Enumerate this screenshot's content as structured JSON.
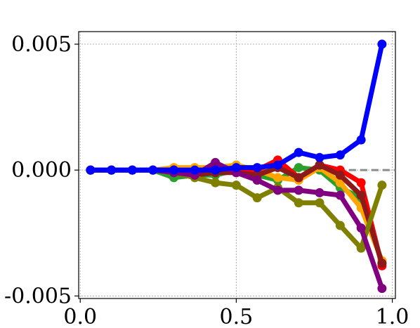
{
  "chart_data": {
    "type": "line",
    "title": "",
    "xlabel": "",
    "ylabel": "",
    "xlim": [
      -0.005,
      1.01
    ],
    "ylim": [
      -0.0051,
      0.0055
    ],
    "grid": true,
    "baseline_y": 0,
    "x_ticks": [
      0.0,
      0.5,
      1.0
    ],
    "x_tick_labels": [
      "0.0",
      "0.5",
      "1.0"
    ],
    "y_ticks": [
      0.005,
      0.0,
      -0.005
    ],
    "y_tick_labels": [
      "0.005",
      "0.000",
      "-0.005"
    ],
    "x": [
      0.033,
      0.1,
      0.167,
      0.233,
      0.3,
      0.367,
      0.433,
      0.5,
      0.567,
      0.633,
      0.7,
      0.767,
      0.833,
      0.9,
      0.967
    ],
    "series": [
      {
        "color": "#2ca02c",
        "values": [
          0,
          0,
          0,
          0,
          -0.0003,
          -0.0002,
          -0.0002,
          0,
          -0.0002,
          -0.0004,
          0.0001,
          0,
          -0.0007,
          -0.0011,
          -0.0037
        ]
      },
      {
        "color": "#ffa500",
        "values": [
          0,
          0,
          0,
          0,
          0.0001,
          0.0001,
          0.0001,
          0.0002,
          0,
          -0.0003,
          -0.0004,
          0.0001,
          -0.0005,
          -0.0015,
          -0.0036
        ]
      },
      {
        "color": "#ff0000",
        "values": [
          0,
          0,
          0,
          0,
          0,
          -0.0001,
          -0.0001,
          0,
          0,
          0.0004,
          -0.0003,
          0.0002,
          0,
          -0.0005,
          -0.0038
        ]
      },
      {
        "color": "#8b1a1a",
        "values": [
          0,
          0,
          0,
          0,
          0,
          -0.0002,
          -0.0001,
          -0.0001,
          -0.0002,
          0.0001,
          -0.0003,
          0.0002,
          -0.0002,
          -0.001,
          -0.0037
        ]
      },
      {
        "color": "#808000",
        "values": [
          0,
          0,
          0,
          0,
          -0.0001,
          -0.0003,
          -0.0005,
          -0.0006,
          -0.0011,
          -0.0007,
          -0.0013,
          -0.0013,
          -0.0022,
          -0.0031,
          -0.0006
        ]
      },
      {
        "color": "#800080",
        "values": [
          0,
          0,
          0,
          0,
          -0.0001,
          -0.0002,
          0.0003,
          -0.0001,
          -0.0004,
          -0.0008,
          -0.0008,
          -0.0009,
          -0.001,
          -0.0023,
          -0.0047
        ]
      },
      {
        "color": "#0000ff",
        "values": [
          0,
          0,
          0,
          0,
          0,
          0,
          0,
          0.0001,
          0.0001,
          0.0002,
          0.0007,
          0.0005,
          0.0006,
          0.0012,
          0.005
        ]
      }
    ]
  }
}
